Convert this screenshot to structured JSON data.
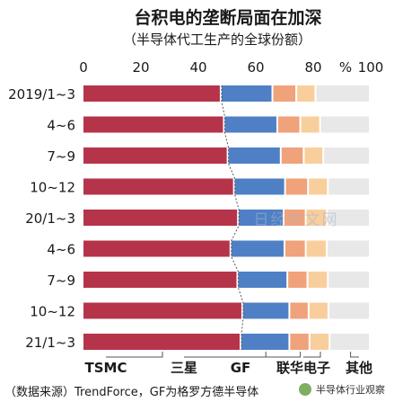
{
  "chart_data": {
    "type": "bar",
    "orientation": "horizontal",
    "stacked": true,
    "title": "台积电的垄断局面在加深",
    "subtitle": "（半导体代工生产的全球份额）",
    "unit_label": "%",
    "x_ticks": [
      "0",
      "20",
      "40",
      "60",
      "80",
      "100"
    ],
    "xlim": [
      0,
      100
    ],
    "categories": [
      "2019/1~3",
      "4~6",
      "7~9",
      "10~12",
      "20/1~3",
      "4~6",
      "7~9",
      "10~12",
      "21/1~3"
    ],
    "series": [
      {
        "name": "TSMC",
        "color": "#b5344a",
        "values": [
          48.1,
          49.2,
          50.5,
          52.7,
          54.1,
          51.5,
          53.9,
          55.6,
          55.0
        ]
      },
      {
        "name": "三星",
        "color": "#4f80c6",
        "values": [
          18.0,
          18.6,
          18.5,
          17.8,
          15.9,
          18.8,
          17.4,
          16.4,
          17.0
        ]
      },
      {
        "name": "GF",
        "color": "#f0a27a",
        "values": [
          8.3,
          8.0,
          8.0,
          8.0,
          7.7,
          7.4,
          7.0,
          6.7,
          7.0
        ]
      },
      {
        "name": "联华电子",
        "color": "#f8cf9c",
        "values": [
          6.7,
          6.9,
          6.8,
          6.9,
          7.4,
          7.3,
          7.1,
          6.9,
          7.0
        ]
      },
      {
        "name": "其他",
        "color": "#e8e8e8",
        "values": [
          18.9,
          17.3,
          16.2,
          14.6,
          14.9,
          15.0,
          14.6,
          14.4,
          14.0
        ]
      }
    ],
    "legend_placement": "bottom",
    "source": "（数据来源）TrendForce，GF为格罗方德半导体",
    "watermark": "日经中文网",
    "logo_text": "半导体行业观察"
  }
}
